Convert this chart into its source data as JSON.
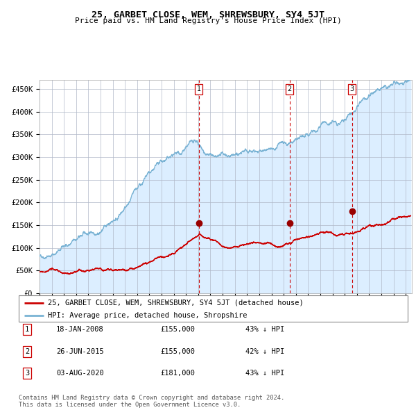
{
  "title": "25, GARBET CLOSE, WEM, SHREWSBURY, SY4 5JT",
  "subtitle": "Price paid vs. HM Land Registry's House Price Index (HPI)",
  "legend_line1": "25, GARBET CLOSE, WEM, SHREWSBURY, SY4 5JT (detached house)",
  "legend_line2": "HPI: Average price, detached house, Shropshire",
  "transactions": [
    {
      "num": 1,
      "date": "18-JAN-2008",
      "price": 155000,
      "pct": "43% ↓ HPI",
      "date_numeric": 2008.046
    },
    {
      "num": 2,
      "date": "26-JUN-2015",
      "price": 155000,
      "pct": "42% ↓ HPI",
      "date_numeric": 2015.484
    },
    {
      "num": 3,
      "date": "03-AUG-2020",
      "price": 181000,
      "pct": "43% ↓ HPI",
      "date_numeric": 2020.588
    }
  ],
  "hpi_color": "#7ab3d4",
  "price_color": "#cc0000",
  "background_color": "#dceeff",
  "grid_color": "#b0b8c8",
  "vline_color": "#cc0000",
  "footer": "Contains HM Land Registry data © Crown copyright and database right 2024.\nThis data is licensed under the Open Government Licence v3.0.",
  "ylim": [
    0,
    470000
  ],
  "yticks": [
    0,
    50000,
    100000,
    150000,
    200000,
    250000,
    300000,
    350000,
    400000,
    450000
  ],
  "ytick_labels": [
    "£0",
    "£50K",
    "£100K",
    "£150K",
    "£200K",
    "£250K",
    "£300K",
    "£350K",
    "£400K",
    "£450K"
  ],
  "xmin": 1995.0,
  "xmax": 2025.5
}
